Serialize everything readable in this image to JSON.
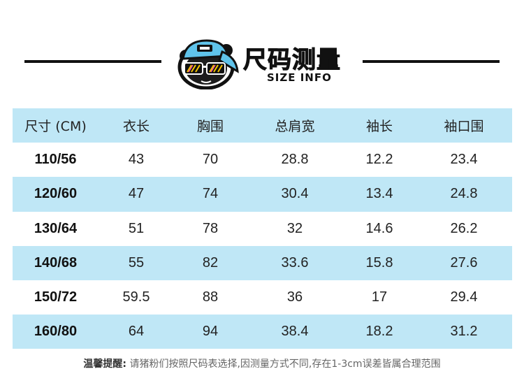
{
  "header": {
    "title_cn": "尺码测量",
    "title_en": "SIZE INFO"
  },
  "table": {
    "columns": [
      "尺寸 (CM)",
      "衣长",
      "胸围",
      "总肩宽",
      "袖长",
      "袖口围"
    ],
    "rows": [
      [
        "110/56",
        "43",
        "70",
        "28.8",
        "12.2",
        "23.4"
      ],
      [
        "120/60",
        "47",
        "74",
        "30.4",
        "13.4",
        "24.8"
      ],
      [
        "130/64",
        "51",
        "78",
        "32",
        "14.6",
        "26.2"
      ],
      [
        "140/68",
        "55",
        "82",
        "33.6",
        "15.8",
        "27.6"
      ],
      [
        "150/72",
        "59.5",
        "88",
        "36",
        "17",
        "29.4"
      ],
      [
        "160/80",
        "64",
        "94",
        "38.4",
        "18.2",
        "31.2"
      ]
    ]
  },
  "note": {
    "label": "温馨提醒:",
    "text": "请猪粉们按照尺码表选择,因测量方式不同,存在1-3cm误差皆属合理范围"
  },
  "colors": {
    "row_shade": "#bfe7f6",
    "mascot_cap": "#5fc3ea"
  },
  "icons": {
    "mascot": "cap-sunglasses-mascot-icon"
  }
}
